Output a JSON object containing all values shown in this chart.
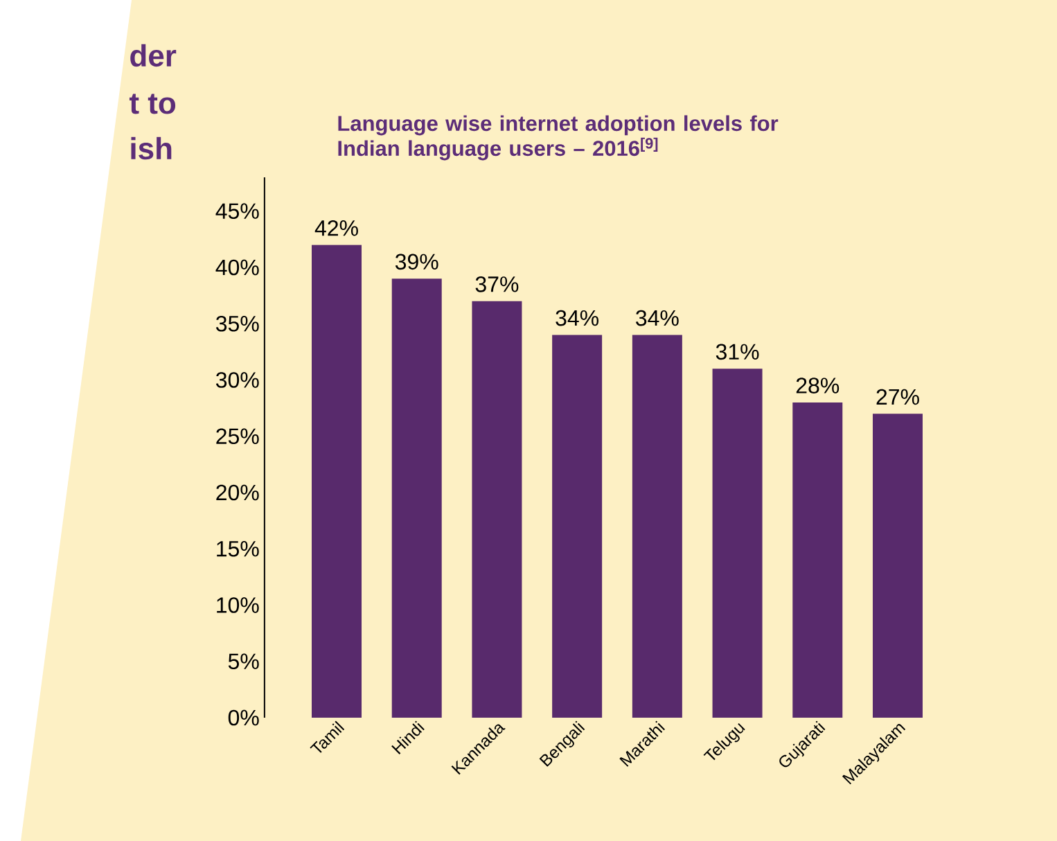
{
  "chart_data": {
    "type": "bar",
    "title": "Language wise internet adoption levels for Indian language users – 2016$^{[9]}$",
    "annotations": [
      "der",
      "t to",
      "ish"
    ],
    "categories": [
      "Tamil",
      "Hindi",
      "Kannada",
      "Bengali",
      "Marathi",
      "Telugu",
      "Gujarati",
      "Malayalam"
    ],
    "values": [
      42,
      39,
      37,
      34,
      34,
      31,
      28,
      27
    ],
    "value_labels": [
      "42%",
      "39%",
      "37%",
      "34%",
      "34%",
      "31%",
      "28%",
      "27%"
    ],
    "color": "#582a6c",
    "ylim": [
      0,
      48
    ],
    "yticks": [
      {
        "value": 0,
        "label": "0%"
      },
      {
        "value": 5,
        "label": "5%"
      },
      {
        "value": 10,
        "label": "10%"
      },
      {
        "value": 15,
        "label": "15%"
      },
      {
        "value": 20,
        "label": "20%"
      },
      {
        "value": 25,
        "label": "25%"
      },
      {
        "value": 30,
        "label": "30%"
      },
      {
        "value": 35,
        "label": "35%"
      },
      {
        "value": 40,
        "label": "40%"
      },
      {
        "value": 45,
        "label": "45%"
      }
    ],
    "grid": false
  }
}
